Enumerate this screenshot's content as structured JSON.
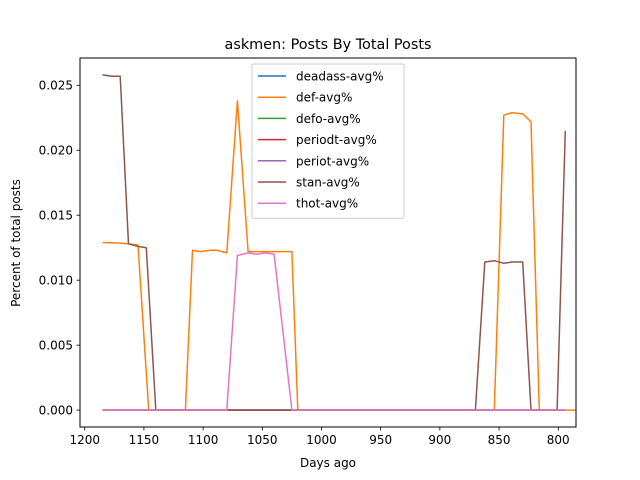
{
  "chart_data": {
    "type": "line",
    "title": "askmen: Posts By Total Posts",
    "xlabel": "Days ago",
    "ylabel": "Percent of total posts",
    "x_inverted": true,
    "xlim": [
      1204,
      785
    ],
    "ylim": [
      -0.0013,
      0.0271
    ],
    "xticks": [
      1200,
      1150,
      1100,
      1050,
      1000,
      950,
      900,
      850,
      800
    ],
    "yticks": [
      "0.000",
      "0.005",
      "0.010",
      "0.015",
      "0.020",
      "0.025"
    ],
    "ytick_values": [
      0.0,
      0.005,
      0.01,
      0.015,
      0.02,
      0.025
    ],
    "legend_position": "top-center",
    "series": [
      {
        "name": "deadass-avg%",
        "color": "#1f77b4",
        "points": [
          [
            1185,
            0
          ],
          [
            816,
            0
          ]
        ]
      },
      {
        "name": "def-avg%",
        "color": "#ff7f0e",
        "points": [
          [
            1185,
            0.0129
          ],
          [
            1170,
            0.01285
          ],
          [
            1163,
            0.0128
          ],
          [
            1155,
            0.0127
          ],
          [
            1146,
            0.0
          ],
          [
            1140,
            0.0
          ],
          [
            1125,
            0.0
          ],
          [
            1115,
            0.0
          ],
          [
            1109,
            0.0123
          ],
          [
            1102,
            0.0122
          ],
          [
            1094,
            0.0123
          ],
          [
            1088,
            0.0123
          ],
          [
            1080,
            0.0121
          ],
          [
            1071,
            0.0238
          ],
          [
            1062,
            0.0122
          ],
          [
            1055,
            0.0122
          ],
          [
            1030,
            0.0122
          ],
          [
            1025,
            0.0122
          ],
          [
            1020,
            0.0
          ],
          [
            1000,
            0.0
          ],
          [
            900,
            0.0
          ],
          [
            870,
            0.0
          ],
          [
            862,
            0.0
          ],
          [
            854,
            0.0
          ],
          [
            846,
            0.0227
          ],
          [
            839,
            0.0229
          ],
          [
            830,
            0.0228
          ],
          [
            823,
            0.0222
          ],
          [
            816,
            0.0
          ],
          [
            808,
            0.0
          ],
          [
            800,
            0.0
          ],
          [
            793,
            0.0
          ],
          [
            786,
            0.0
          ],
          [
            816,
            0.0
          ]
        ]
      },
      {
        "name": "defo-avg%",
        "color": "#2ca02c",
        "points": [
          [
            1185,
            0
          ],
          [
            794,
            0
          ]
        ]
      },
      {
        "name": "periodt-avg%",
        "color": "#d62728",
        "points": [
          [
            1185,
            0
          ],
          [
            794,
            0
          ]
        ]
      },
      {
        "name": "periot-avg%",
        "color": "#9467bd",
        "points": [
          [
            1185,
            0
          ],
          [
            794,
            0
          ]
        ]
      },
      {
        "name": "stan-avg%",
        "color": "#8c564b",
        "points": [
          [
            1185,
            0.0258
          ],
          [
            1177,
            0.0257
          ],
          [
            1170,
            0.0257
          ],
          [
            1163,
            0.0128
          ],
          [
            1155,
            0.0126
          ],
          [
            1148,
            0.0125
          ],
          [
            1140,
            0.0
          ],
          [
            1130,
            0.0
          ],
          [
            1060,
            0.0
          ],
          [
            1030,
            0.0
          ],
          [
            1020,
            0.0
          ],
          [
            1000,
            0.0
          ],
          [
            870,
            0.0
          ],
          [
            862,
            0.0114
          ],
          [
            854,
            0.0115
          ],
          [
            846,
            0.0113
          ],
          [
            839,
            0.0114
          ],
          [
            830,
            0.0114
          ],
          [
            823,
            0.0
          ],
          [
            808,
            0.0
          ],
          [
            801,
            0.0
          ],
          [
            794,
            0.0215
          ]
        ]
      },
      {
        "name": "thot-avg%",
        "color": "#e377c2",
        "points": [
          [
            1185,
            0.0
          ],
          [
            1080,
            0.0
          ],
          [
            1071,
            0.0119
          ],
          [
            1062,
            0.0121
          ],
          [
            1055,
            0.012
          ],
          [
            1047,
            0.0121
          ],
          [
            1040,
            0.012
          ],
          [
            1025,
            0.0
          ],
          [
            1000,
            0.0
          ],
          [
            794,
            0.0
          ]
        ]
      }
    ]
  }
}
